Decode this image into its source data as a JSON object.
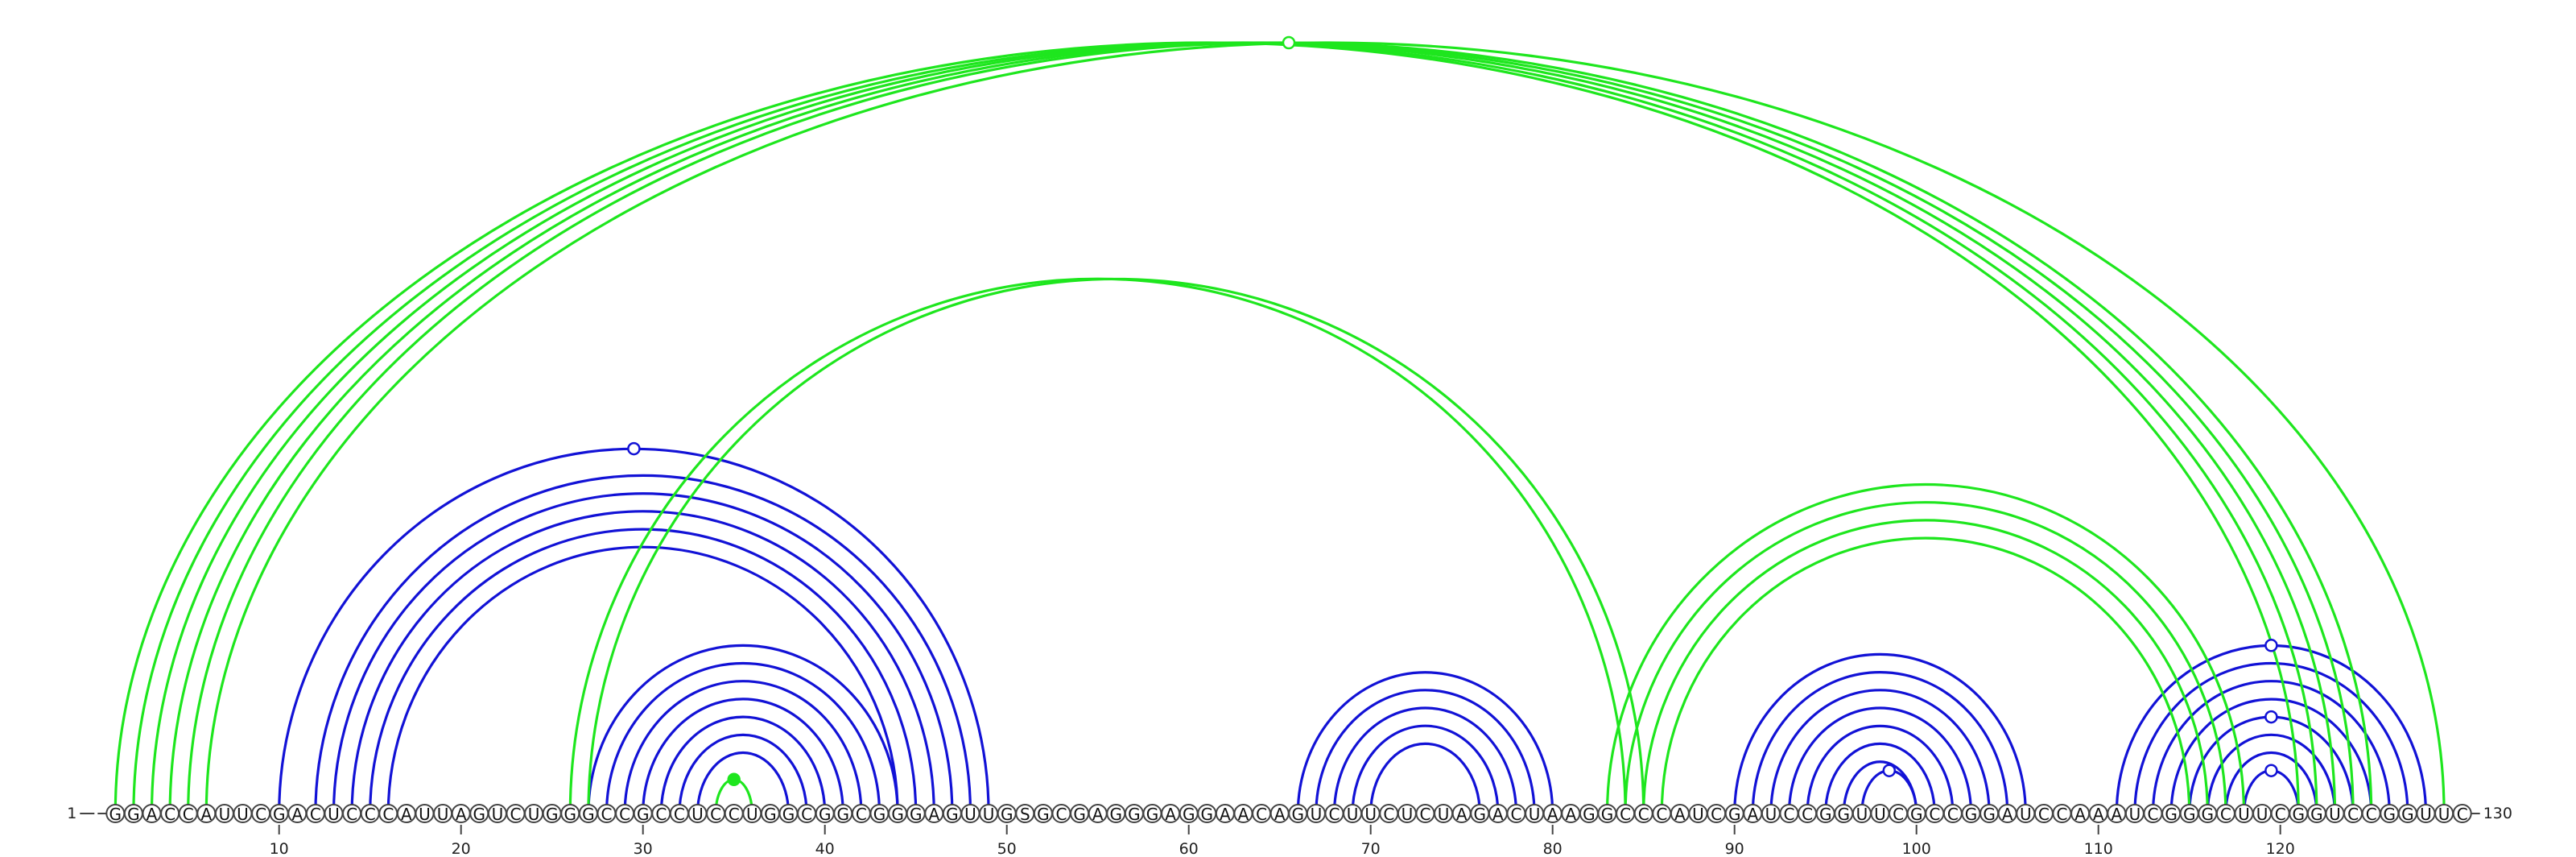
{
  "diagram": {
    "sequence": "GGACCAUUCGACUCCCAUUAGUCUGGGCCGCCUCCUGGCGGCGGGAGUUGSGCGAGGGAGGAACAGUCUUCUCUAGACUAAGGCCCAUCGAUCCGGUUCGCCGGAUCCAAAUCGGGCUUCGGUCCGGUUC",
    "length": 130,
    "start_label": "1",
    "end_label": "130",
    "tick_positions": [
      10,
      20,
      30,
      40,
      50,
      60,
      70,
      80,
      90,
      100,
      110,
      120
    ],
    "colors": {
      "blue": "#1212d6",
      "green": "#1ee61e",
      "circle_stroke": "#444444"
    },
    "blue_pairs": [
      [
        10,
        49
      ],
      [
        12,
        48
      ],
      [
        13,
        47
      ],
      [
        14,
        46
      ],
      [
        15,
        45
      ],
      [
        16,
        44
      ],
      [
        27,
        44
      ],
      [
        28,
        43
      ],
      [
        29,
        42
      ],
      [
        30,
        41
      ],
      [
        31,
        40
      ],
      [
        32,
        39
      ],
      [
        33,
        38
      ],
      [
        66,
        80
      ],
      [
        67,
        79
      ],
      [
        68,
        78
      ],
      [
        69,
        77
      ],
      [
        70,
        76
      ],
      [
        90,
        106
      ],
      [
        91,
        105
      ],
      [
        92,
        104
      ],
      [
        93,
        103
      ],
      [
        94,
        102
      ],
      [
        95,
        101
      ],
      [
        96,
        100
      ],
      [
        97,
        100
      ],
      [
        111,
        128
      ],
      [
        112,
        127
      ],
      [
        113,
        126
      ],
      [
        114,
        125
      ],
      [
        115,
        124
      ],
      [
        116,
        123
      ],
      [
        117,
        122
      ],
      [
        118,
        121
      ]
    ],
    "green_pairs": [
      [
        1,
        121
      ],
      [
        2,
        122
      ],
      [
        3,
        123
      ],
      [
        4,
        124
      ],
      [
        5,
        125
      ],
      [
        6,
        129
      ],
      [
        26,
        84
      ],
      [
        27,
        85
      ],
      [
        34,
        36
      ],
      [
        83,
        118
      ],
      [
        84,
        117
      ],
      [
        85,
        116
      ],
      [
        86,
        115
      ]
    ],
    "markers": [
      {
        "pos": 29.5,
        "pair_span": 39,
        "color": "blue",
        "filled": false
      },
      {
        "pos": 65.5,
        "pair_span": 123,
        "color": "green",
        "filled": false
      },
      {
        "pos": 35,
        "pair_span": 2,
        "color": "green",
        "filled": true
      },
      {
        "pos": 98.5,
        "pair_span": 3,
        "color": "blue",
        "filled": false
      },
      {
        "pos": 119.5,
        "pair_span": 3,
        "color": "blue",
        "filled": false
      },
      {
        "pos": 119.5,
        "pair_span": 9,
        "color": "blue",
        "filled": false
      },
      {
        "pos": 119.5,
        "pair_span": 17,
        "color": "blue",
        "filled": false
      }
    ]
  }
}
